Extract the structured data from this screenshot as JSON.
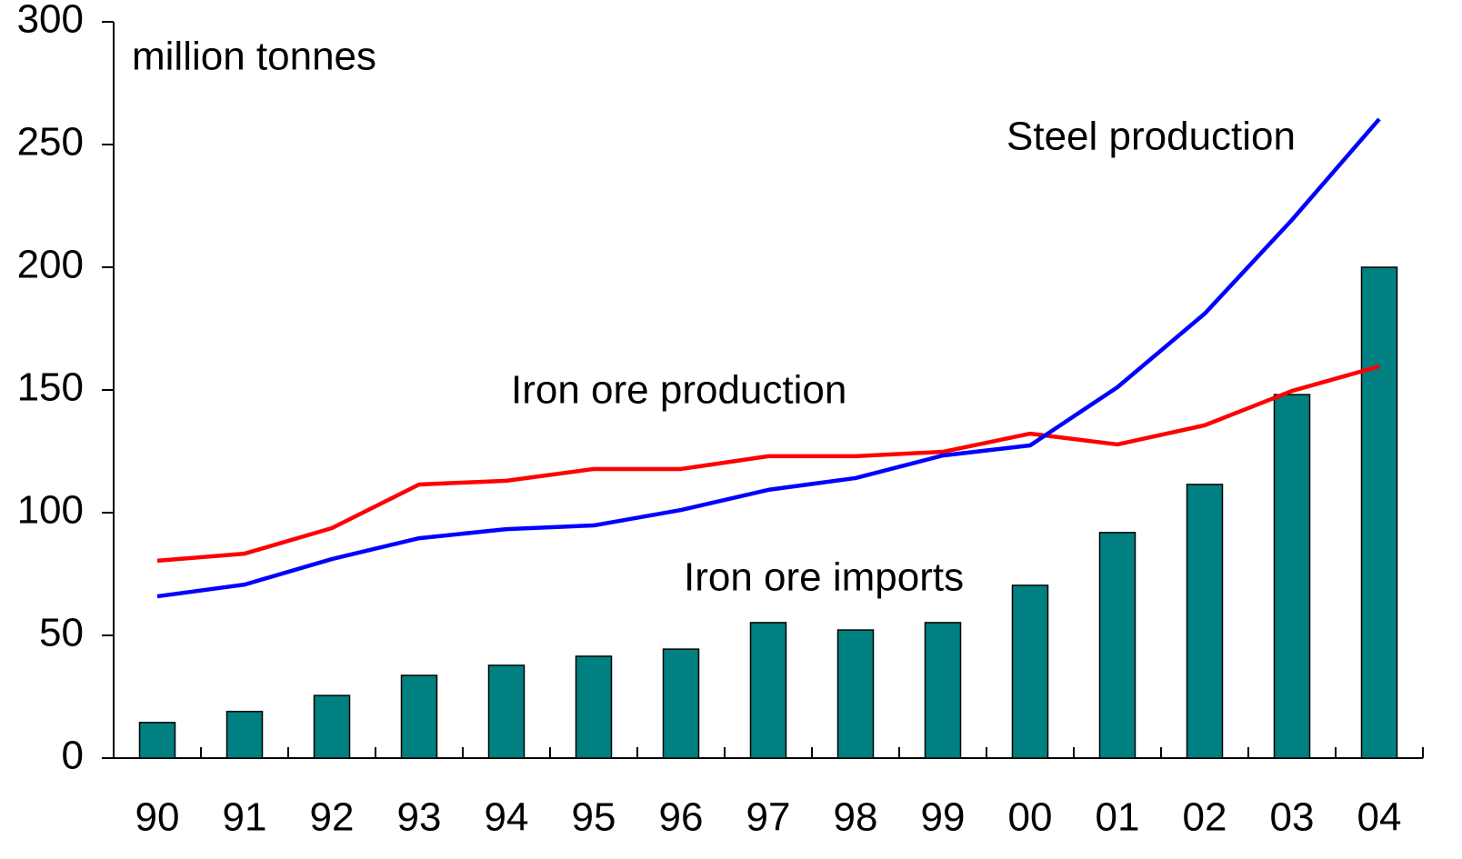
{
  "chart_data": {
    "type": "bar",
    "annotations": [
      "million tonnes"
    ],
    "categories": [
      "90",
      "91",
      "92",
      "93",
      "94",
      "95",
      "96",
      "97",
      "98",
      "99",
      "00",
      "01",
      "02",
      "03",
      "04"
    ],
    "series": [
      {
        "name": "Iron ore imports",
        "type": "bar",
        "color": "#008080",
        "values": [
          14.5,
          19,
          25.5,
          33.7,
          37.8,
          41.5,
          44.4,
          55.2,
          52.2,
          55.2,
          70.4,
          91.9,
          111.5,
          148.1,
          200
        ]
      },
      {
        "name": "Iron ore production",
        "type": "line",
        "color": "#ff0000",
        "values": [
          80.4,
          83.3,
          93.7,
          111.5,
          113,
          117.8,
          117.8,
          123,
          123,
          124.8,
          132.2,
          127.8,
          135.6,
          149.6,
          159.6
        ]
      },
      {
        "name": "Steel production",
        "type": "line",
        "color": "#0000ff",
        "values": [
          65.9,
          70.7,
          81.1,
          89.6,
          93.3,
          94.8,
          101.1,
          109.3,
          114.1,
          123.3,
          127.4,
          151.1,
          181.1,
          219.3,
          260.4
        ]
      }
    ],
    "ylim": [
      0,
      300
    ],
    "yticks": [
      0,
      50,
      100,
      150,
      200,
      250,
      300
    ]
  }
}
